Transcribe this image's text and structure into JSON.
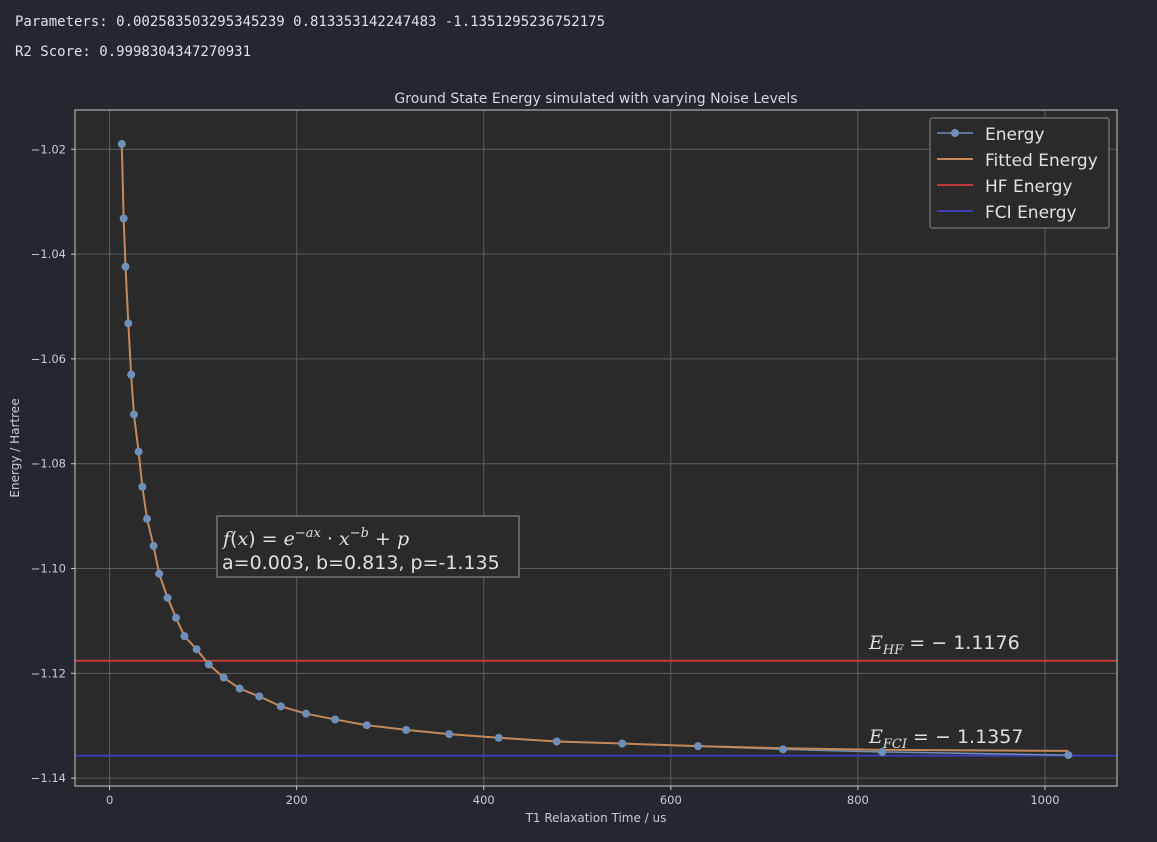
{
  "console": {
    "parameters_line": "Parameters: 0.002583503295345239 0.813353142247483 -1.1351295236752175",
    "r2_line": "R2 Score: 0.9998304347270931"
  },
  "colors": {
    "background": "#23272e",
    "plot_background": "#2a2a2a",
    "energy": "#6f8fb8",
    "fitted": "#c4885a",
    "hf": "#c0393b",
    "fci": "#3c3cb4",
    "grid": "#5a5c60"
  },
  "chart_data": {
    "type": "line",
    "title": "Ground State Energy simulated with varying Noise Levels",
    "xlabel": "T1 Relaxation Time / us",
    "ylabel": "Energy / Hartree",
    "xlim": [
      -37,
      1077
    ],
    "ylim": [
      -1.1415,
      -1.0125
    ],
    "xticks": [
      0,
      200,
      400,
      600,
      800,
      1000
    ],
    "yticks": [
      -1.02,
      -1.04,
      -1.06,
      -1.08,
      -1.1,
      -1.12,
      -1.14
    ],
    "xtick_labels": [
      "0",
      "200",
      "400",
      "600",
      "800",
      "1000"
    ],
    "ytick_labels": [
      "−1.02",
      "−1.04",
      "−1.06",
      "−1.08",
      "−1.10",
      "−1.12",
      "−1.14"
    ],
    "grid": true,
    "legend_position": "top-right",
    "legend": [
      "Energy",
      "Fitted Energy",
      "HF Energy",
      "FCI Energy"
    ],
    "series": [
      {
        "name": "Energy",
        "style": "line-markers",
        "x": [
          13,
          15,
          17,
          20,
          23,
          26,
          31,
          35,
          40,
          47,
          53,
          62,
          71,
          80,
          93,
          106,
          122,
          139,
          160,
          183,
          210,
          241,
          275,
          317,
          363,
          416,
          478,
          548,
          629,
          720,
          826,
          1025
        ],
        "y": [
          -1.019,
          -1.0332,
          -1.0424,
          -1.0532,
          -1.063,
          -1.0706,
          -1.0777,
          -1.0844,
          -1.0905,
          -1.0957,
          -1.101,
          -1.1056,
          -1.1094,
          -1.1129,
          -1.1154,
          -1.1183,
          -1.1208,
          -1.1229,
          -1.1244,
          -1.1263,
          -1.1277,
          -1.1288,
          -1.1299,
          -1.1308,
          -1.1316,
          -1.1323,
          -1.133,
          -1.1334,
          -1.1339,
          -1.1345,
          -1.135,
          -1.1356
        ]
      },
      {
        "name": "Fitted Energy",
        "style": "line",
        "x": [
          13,
          15,
          17,
          20,
          23,
          26,
          31,
          35,
          40,
          47,
          53,
          62,
          71,
          80,
          93,
          106,
          122,
          139,
          160,
          183,
          210,
          241,
          275,
          317,
          363,
          416,
          478,
          548,
          629,
          720,
          826,
          1025
        ],
        "y": [
          -1.019,
          -1.0332,
          -1.0424,
          -1.0532,
          -1.063,
          -1.0706,
          -1.0777,
          -1.0844,
          -1.0905,
          -1.0957,
          -1.101,
          -1.1056,
          -1.1094,
          -1.1129,
          -1.1154,
          -1.1183,
          -1.1208,
          -1.1229,
          -1.1244,
          -1.1263,
          -1.1277,
          -1.1288,
          -1.1299,
          -1.1308,
          -1.1316,
          -1.1323,
          -1.133,
          -1.1334,
          -1.1339,
          -1.1343,
          -1.1346,
          -1.1348
        ]
      },
      {
        "name": "HF Energy",
        "style": "hline",
        "y": -1.1176
      },
      {
        "name": "FCI Energy",
        "style": "hline",
        "y": -1.1357
      }
    ],
    "annotations": {
      "formula": "f(x) = e^{−ax} · x^{−b} + p",
      "formula_params": "a=0.003, b=0.813, p=-1.135",
      "hf_label": "E_HF = −1.1176",
      "fci_label": "E_FCI = −1.1357"
    }
  }
}
